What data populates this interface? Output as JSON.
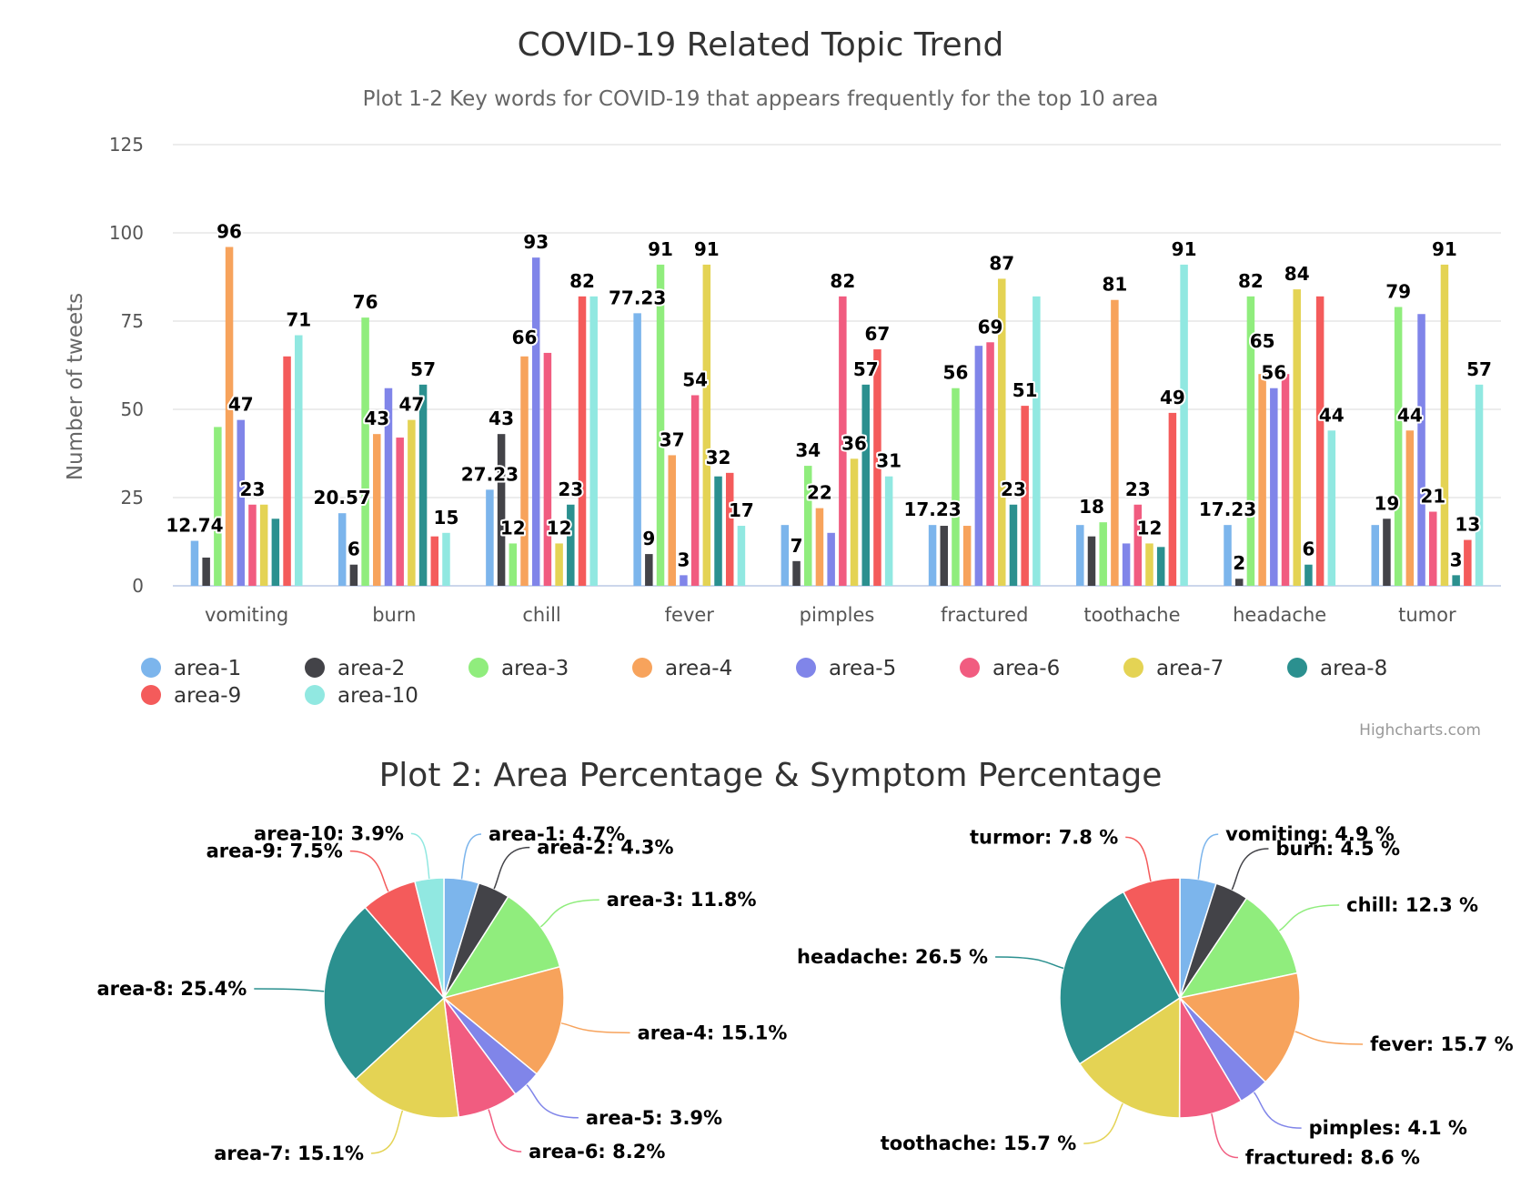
{
  "chart_data": [
    {
      "type": "bar",
      "title": "COVID-19 Related Topic Trend",
      "subtitle": "Plot 1-2 Key words for COVID-19 that appears frequently for the top 10 area",
      "ylabel": "Number of tweets",
      "ylim": [
        0,
        125
      ],
      "yticks": [
        "0",
        "25",
        "50",
        "75",
        "100",
        "125"
      ],
      "categories": [
        "vomiting",
        "burn",
        "chill",
        "fever",
        "pimples",
        "fractured",
        "toothache",
        "headache",
        "tumor"
      ],
      "series": [
        {
          "name": "area-1",
          "color": "#7cb5ec",
          "values": [
            12.74,
            20.57,
            27.23,
            77.23,
            17.23,
            17.23,
            17.23,
            17.23,
            17.23
          ]
        },
        {
          "name": "area-2",
          "color": "#434348",
          "values": [
            8,
            6,
            43,
            9,
            7,
            17,
            14,
            2,
            19
          ]
        },
        {
          "name": "area-3",
          "color": "#90ed7d",
          "values": [
            45,
            76,
            12,
            91,
            34,
            56,
            18,
            82,
            79
          ]
        },
        {
          "name": "area-4",
          "color": "#f7a35c",
          "values": [
            96,
            43,
            65,
            37,
            22,
            17,
            81,
            60,
            44
          ]
        },
        {
          "name": "area-5",
          "color": "#8085e9",
          "values": [
            47,
            56,
            93,
            3,
            15,
            68,
            12,
            56,
            77
          ]
        },
        {
          "name": "area-6",
          "color": "#f15c80",
          "values": [
            23,
            42,
            66,
            54,
            82,
            69,
            23,
            60,
            21
          ]
        },
        {
          "name": "area-7",
          "color": "#e4d354",
          "values": [
            23,
            47,
            12,
            91,
            36,
            87,
            12,
            84,
            91
          ]
        },
        {
          "name": "area-8",
          "color": "#2b908f",
          "values": [
            19,
            57,
            23,
            31,
            57,
            23,
            11,
            6,
            3
          ]
        },
        {
          "name": "area-9",
          "color": "#f45b5b",
          "values": [
            65,
            14,
            82,
            32,
            67,
            51,
            49,
            82,
            13
          ]
        },
        {
          "name": "area-10",
          "color": "#91e8e1",
          "values": [
            71,
            15,
            82,
            17,
            31,
            82,
            91,
            44,
            57
          ]
        }
      ],
      "data_labels": [
        {
          "category": "vomiting",
          "texts": [
            "12.74",
            "47",
            "96",
            "23",
            "71"
          ],
          "series": [
            0,
            4,
            3,
            5,
            9
          ]
        },
        {
          "category": "burn",
          "texts": [
            "20.57",
            "6",
            "76",
            "43",
            "47",
            "57",
            "15"
          ],
          "series": [
            0,
            1,
            2,
            3,
            6,
            7,
            9
          ]
        },
        {
          "category": "chill",
          "texts": [
            "27.23",
            "43",
            "12",
            "66",
            "93",
            "12",
            "23",
            "82"
          ],
          "series": [
            0,
            1,
            2,
            3,
            4,
            6,
            7,
            8
          ]
        },
        {
          "category": "fever",
          "texts": [
            "77.23",
            "9",
            "91",
            "37",
            "3",
            "54",
            "91",
            "32",
            "17"
          ],
          "series": [
            0,
            1,
            2,
            3,
            4,
            5,
            6,
            7,
            9
          ]
        },
        {
          "category": "pimples",
          "texts": [
            "7",
            "34",
            "22",
            "82",
            "36",
            "57",
            "31",
            "67"
          ],
          "series": [
            1,
            2,
            3,
            5,
            6,
            7,
            9,
            8
          ]
        },
        {
          "category": "fractured",
          "texts": [
            "17.23",
            "56",
            "69",
            "87",
            "23",
            "51"
          ],
          "series": [
            0,
            2,
            5,
            6,
            7,
            8
          ]
        },
        {
          "category": "toothache",
          "texts": [
            "18",
            "81",
            "23",
            "12",
            "49",
            "91"
          ],
          "series": [
            1,
            3,
            5,
            6,
            8,
            9
          ]
        },
        {
          "category": "headache",
          "texts": [
            "17.23",
            "2",
            "82",
            "65",
            "56",
            "84",
            "6",
            "44"
          ],
          "series": [
            0,
            1,
            2,
            3,
            4,
            6,
            7,
            9
          ]
        },
        {
          "category": "tumor",
          "texts": [
            "19",
            "79",
            "44",
            "21",
            "91",
            "3",
            "13",
            "57"
          ],
          "series": [
            1,
            2,
            3,
            5,
            6,
            7,
            8,
            9
          ]
        }
      ],
      "legend": "bottom",
      "grid": true
    },
    {
      "type": "pie",
      "title": "Plot 2: Area Percentage & Symptom Percentage",
      "labels": [
        "area-1: 4.7%",
        "area-2: 4.3%",
        "area-3: 11.8%",
        "area-4: 15.1%",
        "area-5: 3.9%",
        "area-6: 8.2%",
        "area-7: 15.1%",
        "area-8: 25.4%",
        "area-9: 7.5%",
        "area-10: 3.9%"
      ],
      "values": [
        4.7,
        4.3,
        11.8,
        15.1,
        3.9,
        8.2,
        15.1,
        25.4,
        7.5,
        3.9
      ]
    },
    {
      "type": "pie",
      "labels": [
        "vomiting: 4.9 %",
        "burn: 4.5 %",
        "chill: 12.3 %",
        "fever: 15.7 %",
        "pimples: 4.1 %",
        "fractured: 8.6 %",
        "toothache: 15.7 %",
        "headache: 26.5 %",
        "turmor: 7.8 %"
      ],
      "values": [
        4.9,
        4.5,
        12.3,
        15.7,
        4.1,
        8.6,
        15.7,
        26.5,
        7.8
      ]
    }
  ],
  "credit": "Highcharts.com",
  "colors": [
    "#7cb5ec",
    "#434348",
    "#90ed7d",
    "#f7a35c",
    "#8085e9",
    "#f15c80",
    "#e4d354",
    "#2b908f",
    "#f45b5b",
    "#91e8e1"
  ]
}
